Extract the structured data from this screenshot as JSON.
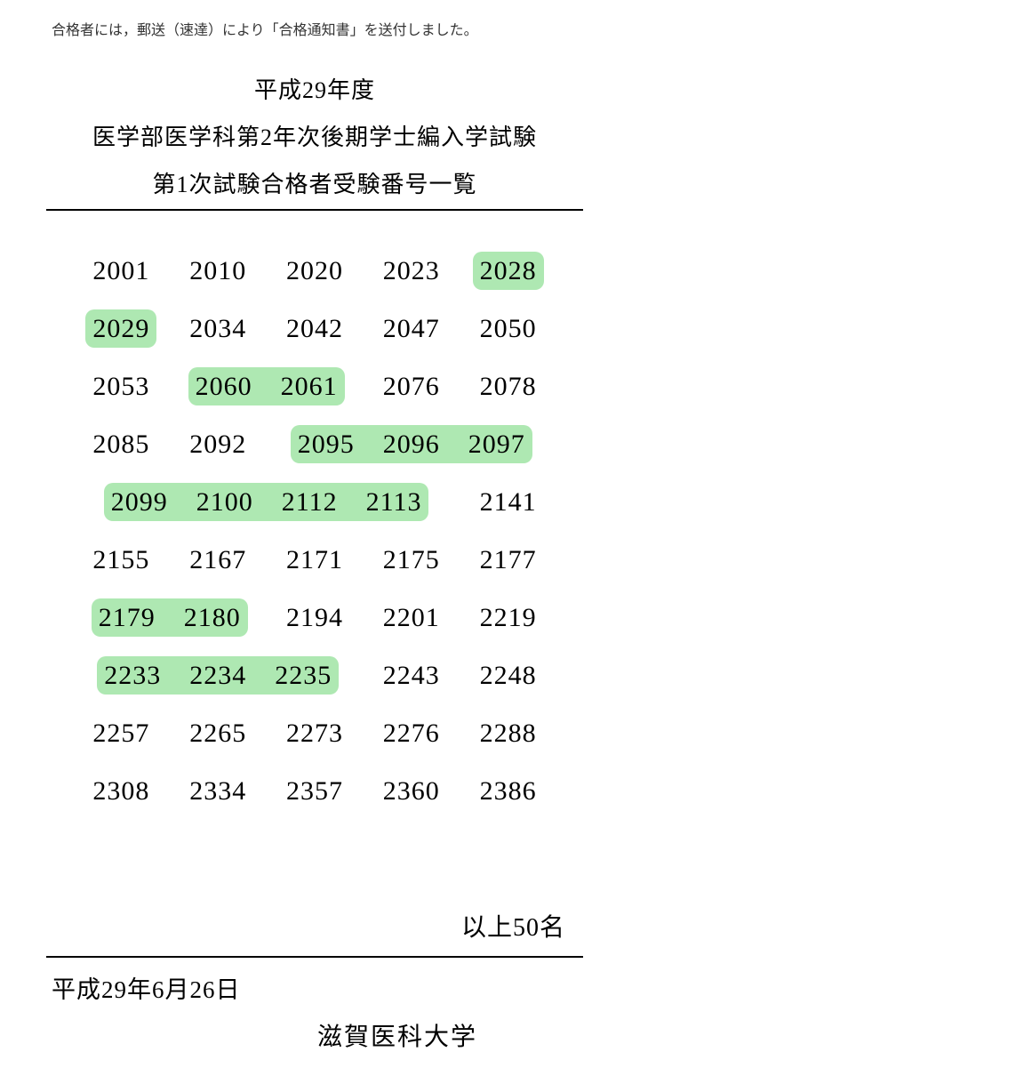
{
  "notice_text": "合格者には，郵送（速達）により「合格通知書」を送付しました。",
  "header": {
    "line1": "平成29年度",
    "line2": "医学部医学科第2年次後期学士編入学試験",
    "line3": "第1次試験合格者受験番号一覧"
  },
  "highlight_color": "#aee8b2",
  "text_color": "#000000",
  "background_color": "#ffffff",
  "columns": 5,
  "numbers": [
    {
      "v": "2001",
      "h": false
    },
    {
      "v": "2010",
      "h": false
    },
    {
      "v": "2020",
      "h": false
    },
    {
      "v": "2023",
      "h": false
    },
    {
      "v": "2028",
      "h": true
    },
    {
      "v": "2029",
      "h": true
    },
    {
      "v": "2034",
      "h": false
    },
    {
      "v": "2042",
      "h": false
    },
    {
      "v": "2047",
      "h": false
    },
    {
      "v": "2050",
      "h": false
    },
    {
      "v": "2053",
      "h": false
    },
    {
      "v": "2060",
      "h": true
    },
    {
      "v": "2061",
      "h": true
    },
    {
      "v": "2076",
      "h": false
    },
    {
      "v": "2078",
      "h": false
    },
    {
      "v": "2085",
      "h": false
    },
    {
      "v": "2092",
      "h": false
    },
    {
      "v": "2095",
      "h": true
    },
    {
      "v": "2096",
      "h": true
    },
    {
      "v": "2097",
      "h": true
    },
    {
      "v": "2099",
      "h": true
    },
    {
      "v": "2100",
      "h": true
    },
    {
      "v": "2112",
      "h": true
    },
    {
      "v": "2113",
      "h": true
    },
    {
      "v": "2141",
      "h": false
    },
    {
      "v": "2155",
      "h": false
    },
    {
      "v": "2167",
      "h": false
    },
    {
      "v": "2171",
      "h": false
    },
    {
      "v": "2175",
      "h": false
    },
    {
      "v": "2177",
      "h": false
    },
    {
      "v": "2179",
      "h": true
    },
    {
      "v": "2180",
      "h": true
    },
    {
      "v": "2194",
      "h": false
    },
    {
      "v": "2201",
      "h": false
    },
    {
      "v": "2219",
      "h": false
    },
    {
      "v": "2233",
      "h": true
    },
    {
      "v": "2234",
      "h": true
    },
    {
      "v": "2235",
      "h": true
    },
    {
      "v": "2243",
      "h": false
    },
    {
      "v": "2248",
      "h": false
    },
    {
      "v": "2257",
      "h": false
    },
    {
      "v": "2265",
      "h": false
    },
    {
      "v": "2273",
      "h": false
    },
    {
      "v": "2276",
      "h": false
    },
    {
      "v": "2288",
      "h": false
    },
    {
      "v": "2308",
      "h": false
    },
    {
      "v": "2334",
      "h": false
    },
    {
      "v": "2357",
      "h": false
    },
    {
      "v": "2360",
      "h": false
    },
    {
      "v": "2386",
      "h": false
    }
  ],
  "total_text": "以上50名",
  "footer": {
    "date": "平成29年6月26日",
    "institution": "滋賀医科大学"
  },
  "font": {
    "body_family": "serif-mincho",
    "number_family": "Century",
    "header_size_pt": 20,
    "number_size_pt": 22,
    "notice_size_pt": 12
  }
}
